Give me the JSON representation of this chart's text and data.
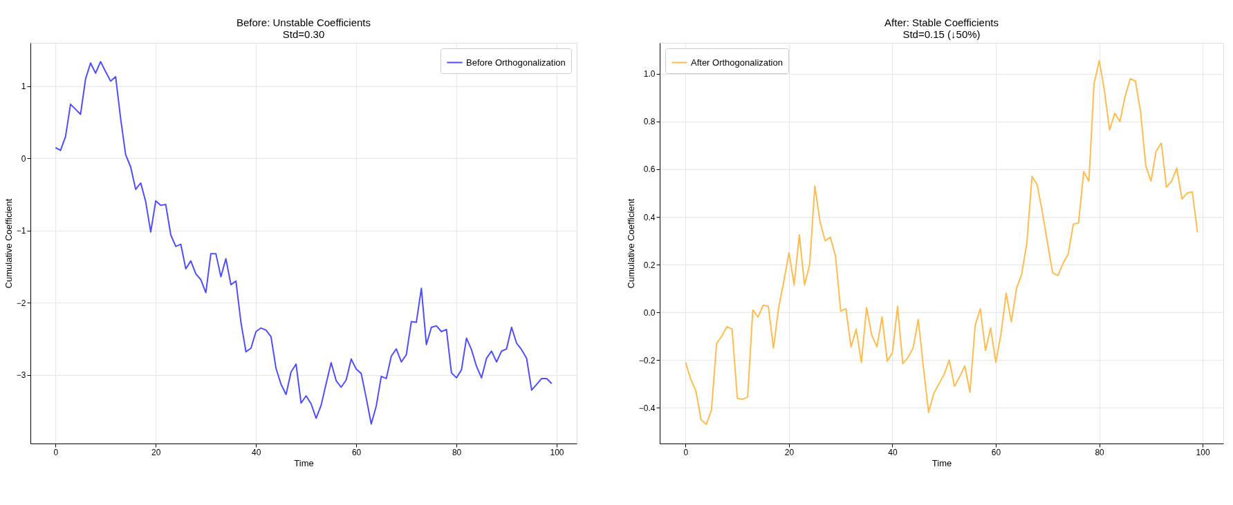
{
  "chart_data": [
    {
      "type": "line",
      "title": "Before: Unstable Coefficients\nStd=0.30",
      "xlabel": "Time",
      "ylabel": "Cumulative Coefficient",
      "x": [
        0,
        1,
        2,
        3,
        4,
        5,
        6,
        7,
        8,
        9,
        10,
        11,
        12,
        13,
        14,
        15,
        16,
        17,
        18,
        19,
        20,
        21,
        22,
        23,
        24,
        25,
        26,
        27,
        28,
        29,
        30,
        31,
        32,
        33,
        34,
        35,
        36,
        37,
        38,
        39,
        40,
        41,
        42,
        43,
        44,
        45,
        46,
        47,
        48,
        49,
        50,
        51,
        52,
        53,
        54,
        55,
        56,
        57,
        58,
        59,
        60,
        61,
        62,
        63,
        64,
        65,
        66,
        67,
        68,
        69,
        70,
        71,
        72,
        73,
        74,
        75,
        76,
        77,
        78,
        79,
        80,
        81,
        82,
        83,
        84,
        85,
        86,
        87,
        88,
        89,
        90,
        91,
        92,
        93,
        94,
        95,
        96,
        97,
        98,
        99
      ],
      "series": [
        {
          "name": "Before Orthogonalization",
          "color": "#4d4dff",
          "values": [
            0.15,
            0.11,
            0.3,
            0.75,
            0.68,
            0.61,
            1.1,
            1.32,
            1.18,
            1.34,
            1.2,
            1.07,
            1.13,
            0.55,
            0.05,
            -0.12,
            -0.43,
            -0.34,
            -0.6,
            -1.02,
            -0.59,
            -0.65,
            -0.64,
            -1.06,
            -1.22,
            -1.19,
            -1.53,
            -1.42,
            -1.6,
            -1.68,
            -1.86,
            -1.32,
            -1.32,
            -1.64,
            -1.39,
            -1.75,
            -1.7,
            -2.27,
            -2.68,
            -2.63,
            -2.4,
            -2.35,
            -2.38,
            -2.47,
            -2.91,
            -3.13,
            -3.27,
            -2.96,
            -2.85,
            -3.39,
            -3.29,
            -3.4,
            -3.6,
            -3.42,
            -3.12,
            -2.83,
            -3.08,
            -3.17,
            -3.07,
            -2.78,
            -2.92,
            -2.98,
            -3.32,
            -3.68,
            -3.43,
            -3.02,
            -3.05,
            -2.74,
            -2.64,
            -2.82,
            -2.72,
            -2.26,
            -2.27,
            -1.8,
            -2.58,
            -2.34,
            -2.32,
            -2.4,
            -2.37,
            -2.97,
            -3.04,
            -2.93,
            -2.49,
            -2.65,
            -2.88,
            -3.04,
            -2.77,
            -2.67,
            -2.82,
            -2.67,
            -2.64,
            -2.34,
            -2.56,
            -2.65,
            -2.77,
            -3.21,
            -3.13,
            -3.05,
            -3.05,
            -3.12
          ]
        }
      ],
      "xlim": [
        -5,
        104
      ],
      "ylim": [
        -3.95,
        1.6
      ],
      "xticks": [
        0,
        20,
        40,
        60,
        80,
        100
      ],
      "yticks": [
        {
          "value": -3,
          "label": "−3"
        },
        {
          "value": -2,
          "label": "−2"
        },
        {
          "value": -1,
          "label": "−1"
        },
        0,
        1
      ],
      "grid": true,
      "legend": "top right"
    },
    {
      "type": "line",
      "title": "After: Stable Coefficients\nStd=0.15 (↓50%)",
      "xlabel": "Time",
      "ylabel": "Cumulative Coefficient",
      "x": [
        0,
        1,
        2,
        3,
        4,
        5,
        6,
        7,
        8,
        9,
        10,
        11,
        12,
        13,
        14,
        15,
        16,
        17,
        18,
        19,
        20,
        21,
        22,
        23,
        24,
        25,
        26,
        27,
        28,
        29,
        30,
        31,
        32,
        33,
        34,
        35,
        36,
        37,
        38,
        39,
        40,
        41,
        42,
        43,
        44,
        45,
        46,
        47,
        48,
        49,
        50,
        51,
        52,
        53,
        54,
        55,
        56,
        57,
        58,
        59,
        60,
        61,
        62,
        63,
        64,
        65,
        66,
        67,
        68,
        69,
        70,
        71,
        72,
        73,
        74,
        75,
        76,
        77,
        78,
        79,
        80,
        81,
        82,
        83,
        84,
        85,
        86,
        87,
        88,
        89,
        90,
        91,
        92,
        93,
        94,
        95,
        96,
        97,
        98,
        99
      ],
      "series": [
        {
          "name": "After Orthogonalization",
          "color": "#ffbc4d",
          "values": [
            -0.21,
            -0.28,
            -0.33,
            -0.45,
            -0.47,
            -0.41,
            -0.13,
            -0.1,
            -0.06,
            -0.07,
            -0.36,
            -0.365,
            -0.355,
            0.01,
            -0.02,
            0.03,
            0.025,
            -0.15,
            0.02,
            0.13,
            0.25,
            0.115,
            0.325,
            0.115,
            0.2,
            0.53,
            0.38,
            0.3,
            0.315,
            0.235,
            0.005,
            0.015,
            -0.145,
            -0.07,
            -0.21,
            0.02,
            -0.095,
            -0.145,
            -0.02,
            -0.205,
            -0.17,
            0.025,
            -0.215,
            -0.19,
            -0.15,
            -0.03,
            -0.23,
            -0.42,
            -0.34,
            -0.3,
            -0.26,
            -0.2,
            -0.31,
            -0.27,
            -0.225,
            -0.335,
            -0.055,
            0.015,
            -0.16,
            -0.065,
            -0.21,
            -0.09,
            0.08,
            -0.04,
            0.1,
            0.16,
            0.29,
            0.57,
            0.535,
            0.42,
            0.29,
            0.165,
            0.155,
            0.205,
            0.245,
            0.37,
            0.375,
            0.59,
            0.55,
            0.96,
            1.055,
            0.93,
            0.765,
            0.835,
            0.8,
            0.905,
            0.98,
            0.97,
            0.84,
            0.615,
            0.55,
            0.675,
            0.71,
            0.525,
            0.55,
            0.605,
            0.475,
            0.5,
            0.505,
            0.335
          ]
        }
      ],
      "xlim": [
        -5,
        104
      ],
      "ylim": [
        -0.55,
        1.13
      ],
      "xticks": [
        0,
        20,
        40,
        60,
        80,
        100
      ],
      "yticks": [
        {
          "value": -0.4,
          "label": "−0.4"
        },
        {
          "value": -0.2,
          "label": "−0.2"
        },
        {
          "value": 0,
          "label": "0.0"
        },
        {
          "value": 0.2,
          "label": "0.2"
        },
        {
          "value": 0.4,
          "label": "0.4"
        },
        {
          "value": 0.6,
          "label": "0.6"
        },
        {
          "value": 0.8,
          "label": "0.8"
        },
        {
          "value": 1.0,
          "label": "1.0"
        }
      ],
      "grid": true,
      "legend": "top left"
    }
  ]
}
